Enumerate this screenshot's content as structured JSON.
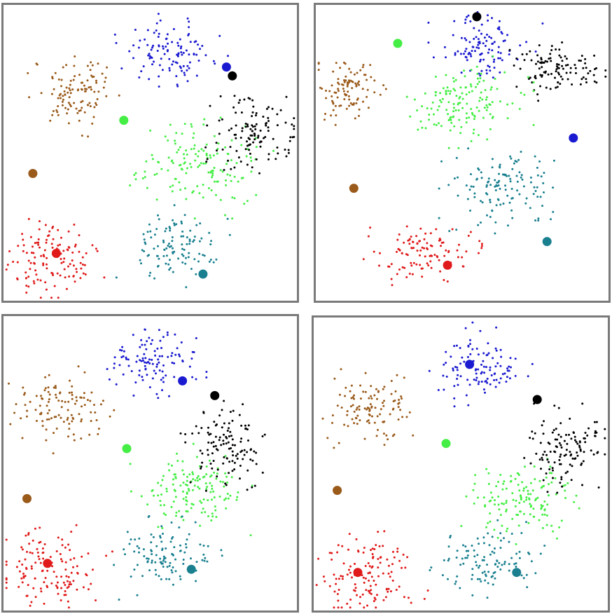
{
  "colors": {
    "blue": "#1a1ad0",
    "brown": "#9a5a1a",
    "green": "#44ee44",
    "black": "#000000",
    "teal": "#1a8090",
    "red": "#e01a1a",
    "panel_border": "#7a7a7a"
  },
  "chart_data": [
    {
      "type": "scatter",
      "grid": false,
      "xlim": [
        0,
        1
      ],
      "ylim": [
        0,
        1
      ],
      "clusters": [
        {
          "color": "blue",
          "cx": 0.57,
          "cy": 0.84,
          "sx": 0.075,
          "sy": 0.05,
          "n": 110
        },
        {
          "color": "brown",
          "cx": 0.25,
          "cy": 0.71,
          "sx": 0.07,
          "sy": 0.06,
          "n": 110
        },
        {
          "color": "green",
          "cx": 0.66,
          "cy": 0.46,
          "sx": 0.1,
          "sy": 0.07,
          "n": 150
        },
        {
          "color": "black",
          "cx": 0.86,
          "cy": 0.57,
          "sx": 0.07,
          "sy": 0.06,
          "n": 120
        },
        {
          "color": "teal",
          "cx": 0.58,
          "cy": 0.18,
          "sx": 0.075,
          "sy": 0.055,
          "n": 110
        },
        {
          "color": "red",
          "cx": 0.16,
          "cy": 0.14,
          "sx": 0.075,
          "sy": 0.06,
          "n": 130
        }
      ],
      "centroids": [
        {
          "color": "blue",
          "x": 0.76,
          "y": 0.79
        },
        {
          "color": "black",
          "x": 0.78,
          "y": 0.76
        },
        {
          "color": "green",
          "x": 0.41,
          "y": 0.61
        },
        {
          "color": "brown",
          "x": 0.1,
          "y": 0.43
        },
        {
          "color": "red",
          "x": 0.18,
          "y": 0.16
        },
        {
          "color": "teal",
          "x": 0.68,
          "y": 0.09
        }
      ]
    },
    {
      "type": "scatter",
      "grid": false,
      "xlim": [
        0,
        1
      ],
      "ylim": [
        0,
        1
      ],
      "clusters": [
        {
          "color": "blue",
          "cx": 0.58,
          "cy": 0.87,
          "sx": 0.075,
          "sy": 0.05,
          "n": 110
        },
        {
          "color": "black",
          "cx": 0.83,
          "cy": 0.78,
          "sx": 0.08,
          "sy": 0.04,
          "n": 110
        },
        {
          "color": "brown",
          "cx": 0.11,
          "cy": 0.71,
          "sx": 0.05,
          "sy": 0.06,
          "n": 100
        },
        {
          "color": "green",
          "cx": 0.51,
          "cy": 0.67,
          "sx": 0.09,
          "sy": 0.06,
          "n": 150
        },
        {
          "color": "teal",
          "cx": 0.64,
          "cy": 0.37,
          "sx": 0.09,
          "sy": 0.06,
          "n": 130
        },
        {
          "color": "red",
          "cx": 0.36,
          "cy": 0.16,
          "sx": 0.08,
          "sy": 0.045,
          "n": 110
        }
      ],
      "centroids": [
        {
          "color": "black",
          "x": 0.55,
          "y": 0.96
        },
        {
          "color": "green",
          "x": 0.28,
          "y": 0.87
        },
        {
          "color": "blue",
          "x": 0.88,
          "y": 0.55
        },
        {
          "color": "brown",
          "x": 0.13,
          "y": 0.38
        },
        {
          "color": "teal",
          "x": 0.79,
          "y": 0.2
        },
        {
          "color": "red",
          "x": 0.45,
          "y": 0.12
        }
      ]
    },
    {
      "type": "scatter",
      "grid": false,
      "xlim": [
        0,
        1
      ],
      "ylim": [
        0,
        1
      ],
      "clusters": [
        {
          "color": "blue",
          "cx": 0.51,
          "cy": 0.84,
          "sx": 0.07,
          "sy": 0.055,
          "n": 110
        },
        {
          "color": "brown",
          "cx": 0.2,
          "cy": 0.69,
          "sx": 0.07,
          "sy": 0.06,
          "n": 110
        },
        {
          "color": "green",
          "cx": 0.64,
          "cy": 0.41,
          "sx": 0.08,
          "sy": 0.06,
          "n": 140
        },
        {
          "color": "black",
          "cx": 0.76,
          "cy": 0.57,
          "sx": 0.07,
          "sy": 0.07,
          "n": 120
        },
        {
          "color": "teal",
          "cx": 0.55,
          "cy": 0.18,
          "sx": 0.075,
          "sy": 0.055,
          "n": 110
        },
        {
          "color": "red",
          "cx": 0.15,
          "cy": 0.14,
          "sx": 0.085,
          "sy": 0.06,
          "n": 130
        }
      ],
      "centroids": [
        {
          "color": "blue",
          "x": 0.61,
          "y": 0.78
        },
        {
          "color": "black",
          "x": 0.72,
          "y": 0.73
        },
        {
          "color": "green",
          "x": 0.42,
          "y": 0.55
        },
        {
          "color": "brown",
          "x": 0.08,
          "y": 0.38
        },
        {
          "color": "red",
          "x": 0.15,
          "y": 0.16
        },
        {
          "color": "teal",
          "x": 0.64,
          "y": 0.14
        }
      ]
    },
    {
      "type": "scatter",
      "grid": false,
      "xlim": [
        0,
        1
      ],
      "ylim": [
        0,
        1
      ],
      "clusters": [
        {
          "color": "blue",
          "cx": 0.57,
          "cy": 0.84,
          "sx": 0.07,
          "sy": 0.055,
          "n": 110
        },
        {
          "color": "brown",
          "cx": 0.2,
          "cy": 0.69,
          "sx": 0.065,
          "sy": 0.06,
          "n": 110
        },
        {
          "color": "green",
          "cx": 0.71,
          "cy": 0.38,
          "sx": 0.08,
          "sy": 0.06,
          "n": 140
        },
        {
          "color": "black",
          "cx": 0.86,
          "cy": 0.55,
          "sx": 0.065,
          "sy": 0.06,
          "n": 120
        },
        {
          "color": "teal",
          "cx": 0.59,
          "cy": 0.17,
          "sx": 0.075,
          "sy": 0.055,
          "n": 110
        },
        {
          "color": "red",
          "cx": 0.19,
          "cy": 0.12,
          "sx": 0.08,
          "sy": 0.06,
          "n": 130
        }
      ],
      "centroids": [
        {
          "color": "blue",
          "x": 0.53,
          "y": 0.84
        },
        {
          "color": "black",
          "x": 0.76,
          "y": 0.72
        },
        {
          "color": "green",
          "x": 0.45,
          "y": 0.57
        },
        {
          "color": "brown",
          "x": 0.08,
          "y": 0.41
        },
        {
          "color": "red",
          "x": 0.15,
          "y": 0.13
        },
        {
          "color": "teal",
          "x": 0.69,
          "y": 0.13
        }
      ]
    }
  ]
}
